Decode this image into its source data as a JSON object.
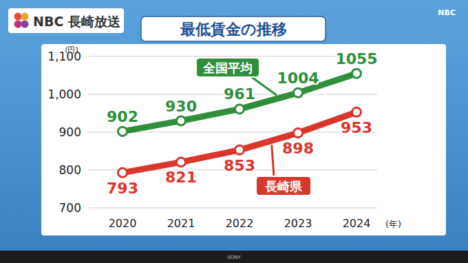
{
  "frame": {
    "logo": "NBC 長崎放送",
    "corner_logo": "NBC",
    "tv_brand": "SONY"
  },
  "chart_data": {
    "type": "line",
    "title": "最低賃金の推移",
    "x_label": "(年)",
    "y_label": "(円)",
    "categories": [
      "2020",
      "2021",
      "2022",
      "2023",
      "2024"
    ],
    "series": [
      {
        "name": "全国平均",
        "color": "#2f8f3c",
        "values": [
          902,
          930,
          961,
          1004,
          1055
        ],
        "marker": "circle"
      },
      {
        "name": "長崎県",
        "color": "#d9362c",
        "values": [
          793,
          821,
          853,
          898,
          953
        ],
        "marker": "circle"
      }
    ],
    "ylim": [
      700,
      1100
    ],
    "yticks": [
      700,
      800,
      900,
      {
        "value": 1000,
        "label": "1,000"
      },
      {
        "value": 1100,
        "label": "1,100"
      }
    ],
    "grid": true,
    "data_labels": true
  }
}
